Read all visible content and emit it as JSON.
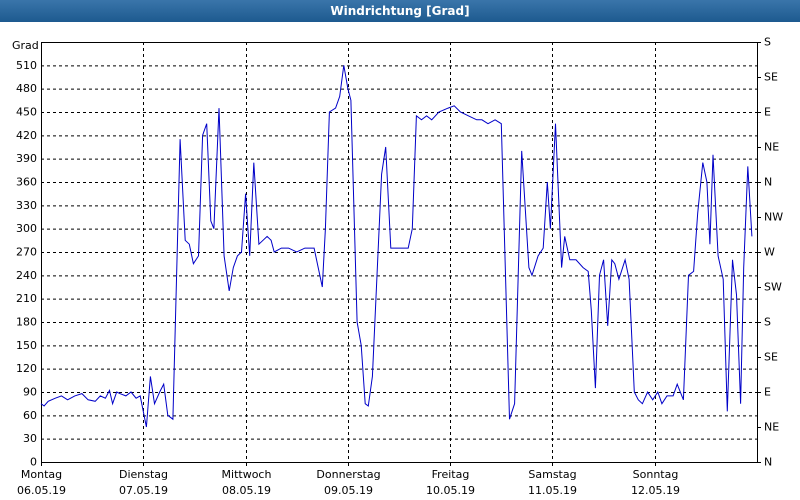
{
  "chart_data": {
    "type": "line",
    "title": "Windrichtung [Grad]",
    "y_label": "Grad",
    "x": [
      0,
      0.03,
      0.07,
      0.14,
      0.2,
      0.26,
      0.33,
      0.4,
      0.46,
      0.53,
      0.58,
      0.63,
      0.67,
      0.7,
      0.74,
      0.77,
      0.83,
      0.88,
      0.93,
      0.97,
      1.03,
      1.07,
      1.11,
      1.16,
      1.2,
      1.24,
      1.29,
      1.36,
      1.41,
      1.45,
      1.49,
      1.54,
      1.58,
      1.62,
      1.66,
      1.69,
      1.74,
      1.79,
      1.84,
      1.88,
      1.92,
      1.96,
      2.0,
      2.04,
      2.08,
      2.13,
      2.21,
      2.25,
      2.28,
      2.35,
      2.42,
      2.5,
      2.58,
      2.67,
      2.71,
      2.75,
      2.78,
      2.82,
      2.88,
      2.92,
      2.96,
      3.0,
      3.03,
      3.09,
      3.13,
      3.17,
      3.2,
      3.24,
      3.33,
      3.37,
      3.42,
      3.59,
      3.63,
      3.67,
      3.72,
      3.77,
      3.82,
      3.89,
      3.98,
      4.04,
      4.1,
      4.18,
      4.26,
      4.31,
      4.37,
      4.44,
      4.5,
      4.58,
      4.63,
      4.7,
      4.77,
      4.8,
      4.86,
      4.91,
      4.95,
      4.98,
      5.03,
      5.09,
      5.12,
      5.17,
      5.23,
      5.3,
      5.35,
      5.38,
      5.42,
      5.46,
      5.5,
      5.54,
      5.58,
      5.61,
      5.65,
      5.71,
      5.75,
      5.8,
      5.84,
      5.88,
      5.93,
      5.98,
      6.03,
      6.07,
      6.12,
      6.18,
      6.22,
      6.28,
      6.33,
      6.38,
      6.42,
      6.47,
      6.51,
      6.54,
      6.57,
      6.62,
      6.67,
      6.71,
      6.76,
      6.8,
      6.84,
      6.87,
      6.91,
      6.95
    ],
    "series": [
      {
        "name": "Windrichtung",
        "color": "#0000c8",
        "values": [
          75,
          72,
          78,
          82,
          85,
          80,
          85,
          88,
          80,
          78,
          85,
          82,
          92,
          75,
          90,
          88,
          85,
          90,
          82,
          85,
          45,
          110,
          75,
          90,
          100,
          60,
          55,
          415,
          285,
          280,
          255,
          265,
          420,
          435,
          310,
          300,
          455,
          265,
          220,
          250,
          265,
          270,
          345,
          265,
          385,
          280,
          290,
          285,
          270,
          275,
          275,
          270,
          275,
          275,
          250,
          225,
          300,
          450,
          455,
          470,
          510,
          480,
          465,
          180,
          150,
          75,
          72,
          110,
          370,
          405,
          275,
          275,
          300,
          445,
          440,
          445,
          440,
          450,
          455,
          458,
          450,
          445,
          440,
          440,
          435,
          440,
          435,
          55,
          75,
          400,
          250,
          240,
          265,
          275,
          360,
          300,
          435,
          250,
          290,
          260,
          260,
          250,
          245,
          195,
          95,
          240,
          260,
          175,
          260,
          255,
          235,
          260,
          235,
          90,
          80,
          75,
          90,
          80,
          90,
          75,
          85,
          85,
          100,
          80,
          240,
          245,
          320,
          385,
          360,
          280,
          395,
          265,
          235,
          65,
          260,
          215,
          75,
          250,
          380,
          290
        ]
      }
    ],
    "xlim": [
      0,
      7
    ],
    "xticks": [
      {
        "value": 0,
        "label": "Montag",
        "date": "06.05.19"
      },
      {
        "value": 1,
        "label": "Dienstag",
        "date": "07.05.19"
      },
      {
        "value": 2,
        "label": "Mittwoch",
        "date": "08.05.19"
      },
      {
        "value": 3,
        "label": "Donnerstag",
        "date": "09.05.19"
      },
      {
        "value": 4,
        "label": "Freitag",
        "date": "10.05.19"
      },
      {
        "value": 5,
        "label": "Samstag",
        "date": "11.05.19"
      },
      {
        "value": 6,
        "label": "Sonntag",
        "date": "12.05.19"
      }
    ],
    "ylim": [
      0,
      540
    ],
    "yticks": [
      0,
      30,
      60,
      90,
      120,
      150,
      180,
      210,
      240,
      270,
      300,
      330,
      360,
      390,
      420,
      450,
      480,
      510
    ],
    "y2lim": [
      0,
      540
    ],
    "y2ticks": [
      {
        "value": 0,
        "label": "N"
      },
      {
        "value": 45,
        "label": "NE"
      },
      {
        "value": 90,
        "label": "E"
      },
      {
        "value": 135,
        "label": "SE"
      },
      {
        "value": 180,
        "label": "S"
      },
      {
        "value": 225,
        "label": "SW"
      },
      {
        "value": 270,
        "label": "W"
      },
      {
        "value": 315,
        "label": "NW"
      },
      {
        "value": 360,
        "label": "N"
      },
      {
        "value": 405,
        "label": "NE"
      },
      {
        "value": 450,
        "label": "E"
      },
      {
        "value": 495,
        "label": "SE"
      },
      {
        "value": 540,
        "label": "S"
      }
    ],
    "grid": true
  }
}
